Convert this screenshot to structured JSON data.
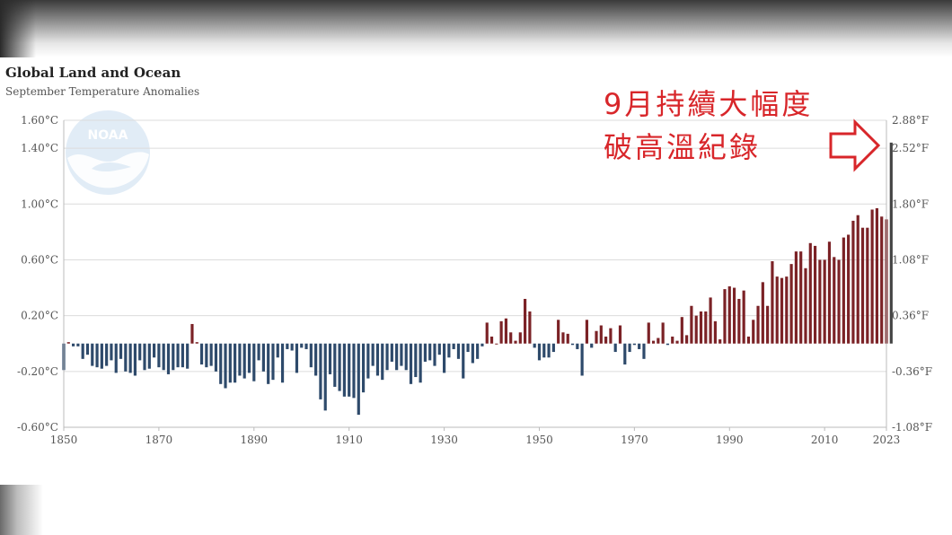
{
  "chart_data": {
    "type": "bar",
    "title": "Global Land and Ocean",
    "subtitle": "September Temperature Anomalies",
    "x_range": [
      1850,
      2023
    ],
    "x_ticks": [
      "1850",
      "1870",
      "1890",
      "1910",
      "1930",
      "1950",
      "1970",
      "1990",
      "2010",
      "2023"
    ],
    "y_left_ticks": [
      "1.60°C",
      "1.40°C",
      "1.00°C",
      "0.60°C",
      "0.20°C",
      "-0.20°C",
      "-0.60°C"
    ],
    "y_left_tick_values": [
      1.6,
      1.4,
      1.0,
      0.6,
      0.2,
      -0.2,
      -0.6
    ],
    "y_right_ticks": [
      "2.88°F",
      "2.52°F",
      "1.80°F",
      "1.08°F",
      "0.36°F",
      "-0.36°F",
      "-1.08°F"
    ],
    "ylim": [
      -0.6,
      1.6
    ],
    "grid": true,
    "colors": {
      "positive": "#7b2226",
      "negative": "#2e4a6b",
      "highlight": "#444444",
      "annotation": "#d8262a"
    },
    "years_start": 1850,
    "values": [
      -0.19,
      0.01,
      -0.02,
      -0.02,
      -0.11,
      -0.08,
      -0.16,
      -0.17,
      -0.18,
      -0.16,
      -0.12,
      -0.21,
      -0.11,
      -0.2,
      -0.21,
      -0.23,
      -0.12,
      -0.19,
      -0.18,
      -0.1,
      -0.17,
      -0.19,
      -0.22,
      -0.19,
      -0.17,
      -0.17,
      -0.18,
      0.14,
      0.01,
      -0.15,
      -0.17,
      -0.16,
      -0.2,
      -0.29,
      -0.32,
      -0.28,
      -0.28,
      -0.23,
      -0.25,
      -0.21,
      -0.27,
      -0.12,
      -0.2,
      -0.29,
      -0.26,
      -0.1,
      -0.28,
      -0.04,
      -0.05,
      -0.21,
      -0.03,
      -0.04,
      -0.17,
      -0.23,
      -0.4,
      -0.48,
      -0.22,
      -0.31,
      -0.34,
      -0.38,
      -0.38,
      -0.39,
      -0.51,
      -0.35,
      -0.25,
      -0.16,
      -0.23,
      -0.26,
      -0.19,
      -0.13,
      -0.19,
      -0.16,
      -0.19,
      -0.29,
      -0.24,
      -0.28,
      -0.13,
      -0.12,
      -0.16,
      -0.08,
      -0.21,
      -0.1,
      -0.04,
      -0.11,
      -0.25,
      -0.06,
      -0.14,
      -0.11,
      -0.02,
      0.15,
      0.05,
      0.0,
      0.16,
      0.18,
      0.08,
      0.02,
      0.08,
      0.32,
      0.23,
      -0.03,
      -0.12,
      -0.1,
      -0.1,
      -0.06,
      0.17,
      0.08,
      0.07,
      -0.01,
      -0.04,
      -0.23,
      0.17,
      -0.03,
      0.09,
      0.13,
      0.05,
      0.11,
      -0.06,
      0.13,
      -0.15,
      -0.06,
      -0.01,
      -0.04,
      -0.11,
      0.15,
      0.02,
      0.04,
      0.15,
      -0.01,
      0.05,
      0.02,
      0.19,
      0.06,
      0.27,
      0.2,
      0.23,
      0.23,
      0.33,
      0.16,
      0.03,
      0.39,
      0.41,
      0.4,
      0.32,
      0.38,
      0.05,
      0.17,
      0.27,
      0.44,
      0.27,
      0.59,
      0.48,
      0.47,
      0.48,
      0.57,
      0.66,
      0.66,
      0.54,
      0.72,
      0.7,
      0.6,
      0.6,
      0.73,
      0.62,
      0.6,
      0.76,
      0.78,
      0.88,
      0.92,
      0.83,
      0.83,
      0.96,
      0.97,
      0.91,
      0.89,
      1.44
    ]
  },
  "annotation": {
    "line1": "9月持續大幅度",
    "line2": "破高溫紀錄"
  },
  "logo": {
    "text": "NOAA",
    "icon": "noaa-logo-icon"
  }
}
